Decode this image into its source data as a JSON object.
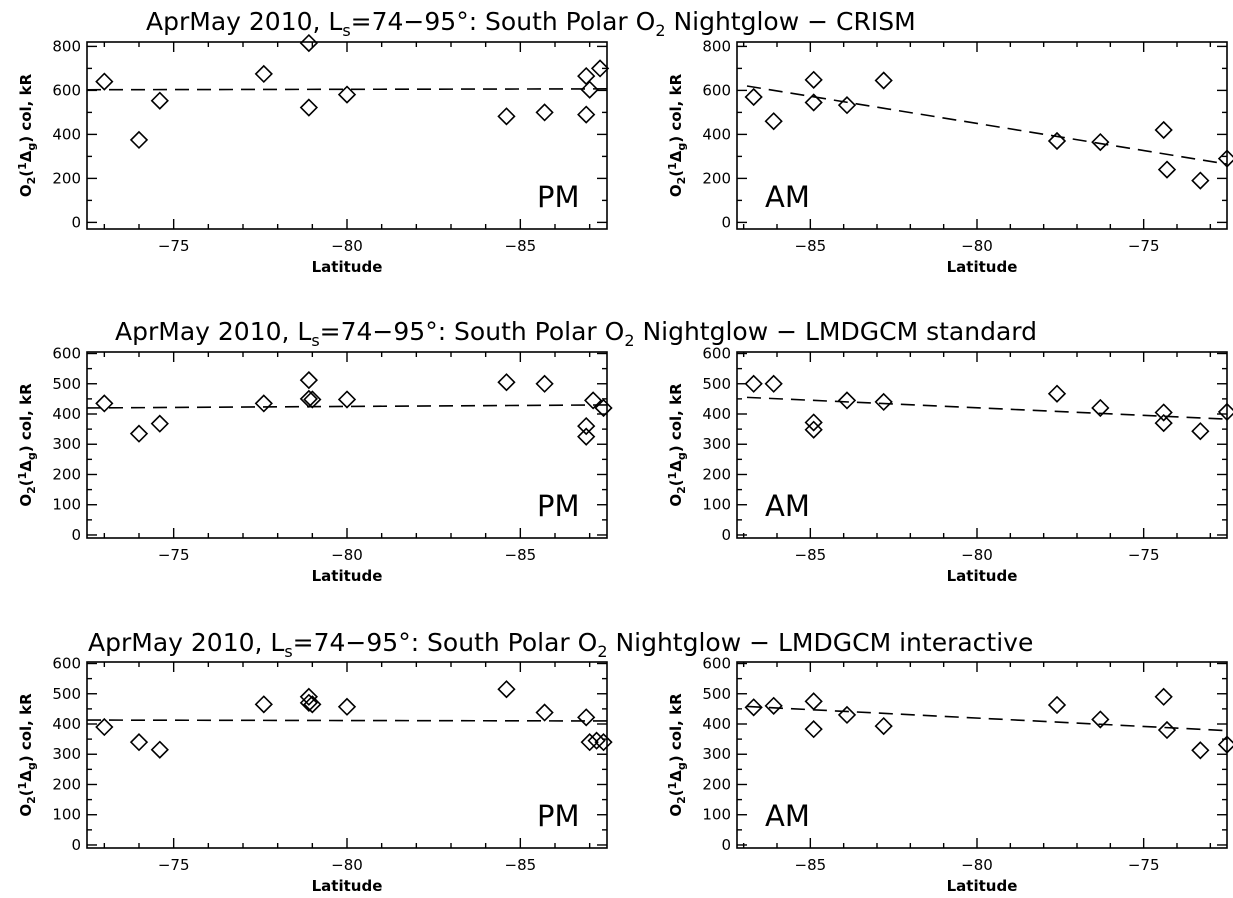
{
  "rows": [
    {
      "title": "AprMay 2010, L",
      "title_sub": "s",
      "title_mid": "=74−95°: South Polar O",
      "title_sub2": "2",
      "title_end": " Nightglow − CRISM"
    },
    {
      "title": "AprMay 2010, L",
      "title_sub": "s",
      "title_mid": "=74−95°: South Polar O",
      "title_sub2": "2",
      "title_end": " Nightglow − LMDGCM standard"
    },
    {
      "title": "AprMay 2010, L",
      "title_sub": "s",
      "title_mid": "=74−95°: South Polar O",
      "title_sub2": "2",
      "title_end": " Nightglow − LMDGCM interactive"
    }
  ],
  "ylabel": {
    "a": "O",
    "b": "2",
    "c": "(",
    "d": "1",
    "e": "Δ",
    "f": "g",
    "g": ") col, kR"
  },
  "chart_data": [
    {
      "type": "scatter",
      "row": 0,
      "col": 0,
      "period_label": "PM",
      "xlabel": "Latitude",
      "xlim": [
        -72.5,
        -87.5
      ],
      "ylim": [
        -30,
        820
      ],
      "xticks": [
        -75,
        -80,
        -85
      ],
      "xtick_labels": [
        "−75",
        "−80",
        "−85"
      ],
      "yticks": [
        0,
        200,
        400,
        600,
        800
      ],
      "ytick_labels": [
        "0",
        "200",
        "400",
        "600",
        "800"
      ],
      "fit": [
        [
          -72.5,
          603
        ],
        [
          -87.5,
          607
        ]
      ],
      "points": [
        [
          -73.0,
          640
        ],
        [
          -74.0,
          375
        ],
        [
          -74.6,
          553
        ],
        [
          -77.6,
          675
        ],
        [
          -78.9,
          522
        ],
        [
          -78.9,
          815
        ],
        [
          -80.0,
          581
        ],
        [
          -84.6,
          482
        ],
        [
          -85.7,
          500
        ],
        [
          -86.9,
          490
        ],
        [
          -86.9,
          665
        ],
        [
          -87.0,
          603
        ],
        [
          -87.3,
          700
        ]
      ]
    },
    {
      "type": "scatter",
      "row": 0,
      "col": 1,
      "period_label": "AM",
      "xlabel": "Latitude",
      "xlim": [
        -87.2,
        -72.5
      ],
      "ylim": [
        -30,
        820
      ],
      "xticks": [
        -85,
        -80,
        -75
      ],
      "xtick_labels": [
        "−85",
        "−80",
        "−75"
      ],
      "yticks": [
        0,
        200,
        400,
        600,
        800
      ],
      "ytick_labels": [
        "0",
        "200",
        "400",
        "600",
        "800"
      ],
      "fit": [
        [
          -86.9,
          620
        ],
        [
          -72.5,
          265
        ]
      ],
      "points": [
        [
          -86.7,
          570
        ],
        [
          -86.1,
          460
        ],
        [
          -84.9,
          648
        ],
        [
          -84.9,
          545
        ],
        [
          -83.9,
          533
        ],
        [
          -82.8,
          645
        ],
        [
          -77.6,
          370
        ],
        [
          -76.3,
          365
        ],
        [
          -74.4,
          420
        ],
        [
          -74.3,
          240
        ],
        [
          -73.3,
          190
        ],
        [
          -72.5,
          290
        ]
      ]
    },
    {
      "type": "scatter",
      "row": 1,
      "col": 0,
      "period_label": "PM",
      "xlabel": "Latitude",
      "xlim": [
        -72.5,
        -87.5
      ],
      "ylim": [
        -10,
        605
      ],
      "xticks": [
        -75,
        -80,
        -85
      ],
      "xtick_labels": [
        "−75",
        "−80",
        "−85"
      ],
      "yticks": [
        0,
        100,
        200,
        300,
        400,
        500,
        600
      ],
      "ytick_labels": [
        "0",
        "100",
        "200",
        "300",
        "400",
        "500",
        "600"
      ],
      "fit": [
        [
          -72.5,
          420
        ],
        [
          -87.5,
          430
        ]
      ],
      "points": [
        [
          -73.0,
          435
        ],
        [
          -74.0,
          335
        ],
        [
          -74.6,
          368
        ],
        [
          -77.6,
          435
        ],
        [
          -78.9,
          512
        ],
        [
          -78.9,
          450
        ],
        [
          -79.0,
          448
        ],
        [
          -80.0,
          448
        ],
        [
          -84.6,
          505
        ],
        [
          -85.7,
          500
        ],
        [
          -86.9,
          360
        ],
        [
          -86.9,
          325
        ],
        [
          -87.1,
          445
        ],
        [
          -87.4,
          420
        ]
      ]
    },
    {
      "type": "scatter",
      "row": 1,
      "col": 1,
      "period_label": "AM",
      "xlabel": "Latitude",
      "xlim": [
        -87.2,
        -72.5
      ],
      "ylim": [
        -10,
        605
      ],
      "xticks": [
        -85,
        -80,
        -75
      ],
      "xtick_labels": [
        "−85",
        "−80",
        "−75"
      ],
      "yticks": [
        0,
        100,
        200,
        300,
        400,
        500,
        600
      ],
      "ytick_labels": [
        "0",
        "100",
        "200",
        "300",
        "400",
        "500",
        "600"
      ],
      "fit": [
        [
          -86.9,
          455
        ],
        [
          -72.5,
          383
        ]
      ],
      "points": [
        [
          -86.7,
          500
        ],
        [
          -86.1,
          500
        ],
        [
          -84.9,
          372
        ],
        [
          -84.9,
          348
        ],
        [
          -83.9,
          445
        ],
        [
          -82.8,
          440
        ],
        [
          -77.6,
          467
        ],
        [
          -76.3,
          420
        ],
        [
          -74.4,
          405
        ],
        [
          -74.4,
          370
        ],
        [
          -73.3,
          343
        ],
        [
          -72.5,
          407
        ]
      ]
    },
    {
      "type": "scatter",
      "row": 2,
      "col": 0,
      "period_label": "PM",
      "xlabel": "Latitude",
      "xlim": [
        -72.5,
        -87.5
      ],
      "ylim": [
        -10,
        605
      ],
      "xticks": [
        -75,
        -80,
        -85
      ],
      "xtick_labels": [
        "−75",
        "−80",
        "−85"
      ],
      "yticks": [
        0,
        100,
        200,
        300,
        400,
        500,
        600
      ],
      "ytick_labels": [
        "0",
        "100",
        "200",
        "300",
        "400",
        "500",
        "600"
      ],
      "fit": [
        [
          -72.5,
          413
        ],
        [
          -87.5,
          410
        ]
      ],
      "points": [
        [
          -73.0,
          390
        ],
        [
          -74.0,
          340
        ],
        [
          -74.6,
          315
        ],
        [
          -77.6,
          465
        ],
        [
          -78.9,
          490
        ],
        [
          -78.9,
          470
        ],
        [
          -79.0,
          465
        ],
        [
          -80.0,
          457
        ],
        [
          -84.6,
          515
        ],
        [
          -85.7,
          438
        ],
        [
          -86.9,
          422
        ],
        [
          -87.0,
          340
        ],
        [
          -87.2,
          345
        ],
        [
          -87.4,
          340
        ]
      ]
    },
    {
      "type": "scatter",
      "row": 2,
      "col": 1,
      "period_label": "AM",
      "xlabel": "Latitude",
      "xlim": [
        -87.2,
        -72.5
      ],
      "ylim": [
        -10,
        605
      ],
      "xticks": [
        -85,
        -80,
        -75
      ],
      "xtick_labels": [
        "−85",
        "−80",
        "−75"
      ],
      "yticks": [
        0,
        100,
        200,
        300,
        400,
        500,
        600
      ],
      "ytick_labels": [
        "0",
        "100",
        "200",
        "300",
        "400",
        "500",
        "600"
      ],
      "fit": [
        [
          -86.9,
          458
        ],
        [
          -72.5,
          378
        ]
      ],
      "points": [
        [
          -86.7,
          455
        ],
        [
          -86.1,
          460
        ],
        [
          -84.9,
          475
        ],
        [
          -84.9,
          383
        ],
        [
          -83.9,
          430
        ],
        [
          -82.8,
          393
        ],
        [
          -77.6,
          463
        ],
        [
          -76.3,
          415
        ],
        [
          -74.4,
          490
        ],
        [
          -74.3,
          380
        ],
        [
          -73.3,
          313
        ],
        [
          -72.5,
          332
        ]
      ]
    }
  ]
}
